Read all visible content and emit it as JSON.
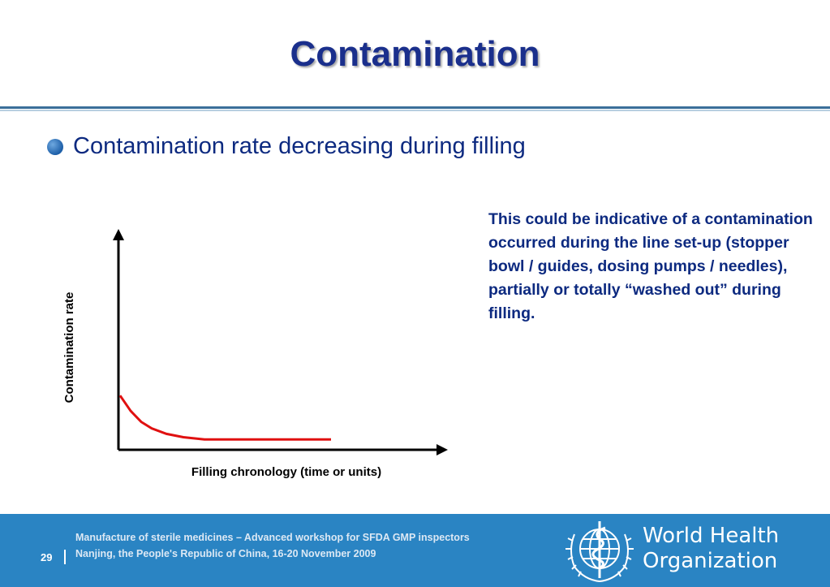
{
  "slide": {
    "title": "Contamination",
    "bullet": "Contamination rate decreasing during filling",
    "note": "This could be indicative of a contamination occurred during the line set-up (stopper bowl / guides, dosing pumps / needles), partially or totally “washed out” during filling."
  },
  "chart_data": {
    "type": "line",
    "title": "",
    "xlabel": "Filling chronology (time or units)",
    "ylabel": "Contamination rate",
    "ticks": "none",
    "grid": false,
    "legend": "none",
    "series": [
      {
        "color": "#e01010",
        "shape": "decays from an initial elevated rate to a low constant level",
        "x": [
          0,
          0.05,
          0.1,
          0.15,
          0.22,
          0.3,
          0.4,
          0.5,
          0.65,
          0.8,
          1.0
        ],
        "y": [
          0.24,
          0.17,
          0.12,
          0.09,
          0.065,
          0.05,
          0.04,
          0.04,
          0.04,
          0.04,
          0.04
        ]
      }
    ],
    "axis_color": "#000000"
  },
  "footer": {
    "line1": "Manufacture of sterile medicines – Advanced workshop for SFDA GMP inspectors",
    "line2": "Nanjing, the People's Republic of China, 16-20 November 2009",
    "page": "29",
    "org_line1": "World Health",
    "org_line2": "Organization",
    "background_color": "#2a84c3"
  }
}
